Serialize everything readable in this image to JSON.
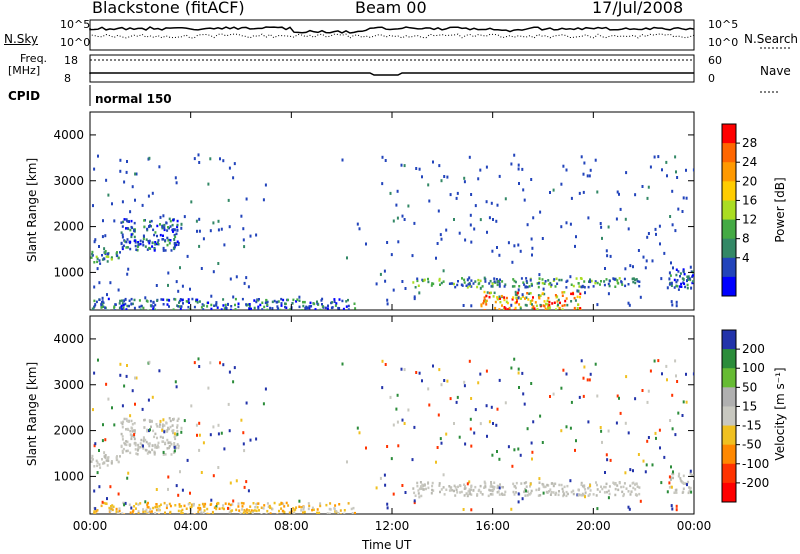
{
  "header": {
    "station": "Blackstone (fitACF)",
    "beam": "Beam 00",
    "date": "17/Jul/2008"
  },
  "summary_panel": {
    "left_labels": {
      "nsky": "N.Sky",
      "freq": "Freq.",
      "freq_unit": "[MHz]",
      "cpid": "CPID"
    },
    "right_labels": {
      "nsearch": "N.Search",
      "nave": "Nave"
    },
    "nsky_ticks": [
      "10^5",
      "10^0"
    ],
    "nsearch_ticks": [
      "10^5",
      "10^0"
    ],
    "freq_ticks": [
      "18",
      "8"
    ],
    "nave_ticks": [
      "60",
      "0"
    ],
    "cpid_label": "normal 150"
  },
  "colorbars": {
    "power": {
      "title": "Power [dB]",
      "ticks": [
        "28",
        "24",
        "20",
        "16",
        "12",
        "8",
        "4"
      ],
      "colors": [
        "#ff0000",
        "#ff6600",
        "#ff9900",
        "#ffcc00",
        "#aadd22",
        "#44aa44",
        "#338866",
        "#2244bb",
        "#0000ff"
      ]
    },
    "velocity": {
      "title": "Velocity [m s⁻¹]",
      "ticks": [
        "200",
        "100",
        "50",
        "15",
        "-15",
        "-50",
        "-100",
        "-200"
      ],
      "colors": [
        "#2233aa",
        "#2b8c3a",
        "#66bb33",
        "#b0b0b0",
        "#c8c8c0",
        "#f0c020",
        "#ff8800",
        "#ff3300",
        "#ff0000"
      ]
    }
  },
  "chart_data": [
    {
      "type": "heatmap",
      "name": "power",
      "ylabel": "Slant Range [km]",
      "x_ticks": [
        "00:00",
        "04:00",
        "08:00",
        "12:00",
        "16:00",
        "20:00",
        "00:00"
      ],
      "xlim": [
        0,
        24
      ],
      "y_ticks": [
        "1000",
        "2000",
        "3000",
        "4000"
      ],
      "ylim": [
        180,
        4500
      ],
      "regions": [
        {
          "x": [
            0.0,
            1.2
          ],
          "y": [
            1200,
            1500
          ],
          "level": "mixed"
        },
        {
          "x": [
            1.2,
            3.5
          ],
          "y": [
            1500,
            2200
          ],
          "level": "low"
        },
        {
          "x": [
            0.0,
            5.8
          ],
          "y": [
            180,
            450
          ],
          "level": "low"
        },
        {
          "x": [
            5.8,
            10.5
          ],
          "y": [
            200,
            450
          ],
          "level": "low"
        },
        {
          "x": [
            12.8,
            21.8
          ],
          "y": [
            700,
            900
          ],
          "level": "mixed"
        },
        {
          "x": [
            15.5,
            19.5
          ],
          "y": [
            200,
            600
          ],
          "level": "high"
        },
        {
          "x": [
            23.0,
            24.0
          ],
          "y": [
            650,
            1100
          ],
          "level": "low"
        }
      ]
    },
    {
      "type": "heatmap",
      "name": "velocity",
      "ylabel": "Slant Range [km]",
      "xlabel": "Time UT",
      "x_ticks": [
        "00:00",
        "04:00",
        "08:00",
        "12:00",
        "16:00",
        "20:00",
        "00:00"
      ],
      "xlim": [
        0,
        24
      ],
      "y_ticks": [
        "1000",
        "2000",
        "3000",
        "4000"
      ],
      "ylim": [
        180,
        4500
      ],
      "regions": [
        {
          "x": [
            0.0,
            1.2
          ],
          "y": [
            1200,
            1500
          ],
          "level": "ground"
        },
        {
          "x": [
            1.2,
            3.5
          ],
          "y": [
            1500,
            2300
          ],
          "level": "ground"
        },
        {
          "x": [
            0.0,
            10.5
          ],
          "y": [
            180,
            450
          ],
          "level": "negative"
        },
        {
          "x": [
            12.8,
            21.8
          ],
          "y": [
            600,
            900
          ],
          "level": "ground"
        },
        {
          "x": [
            23.0,
            24.0
          ],
          "y": [
            650,
            1100
          ],
          "level": "ground"
        }
      ]
    }
  ]
}
